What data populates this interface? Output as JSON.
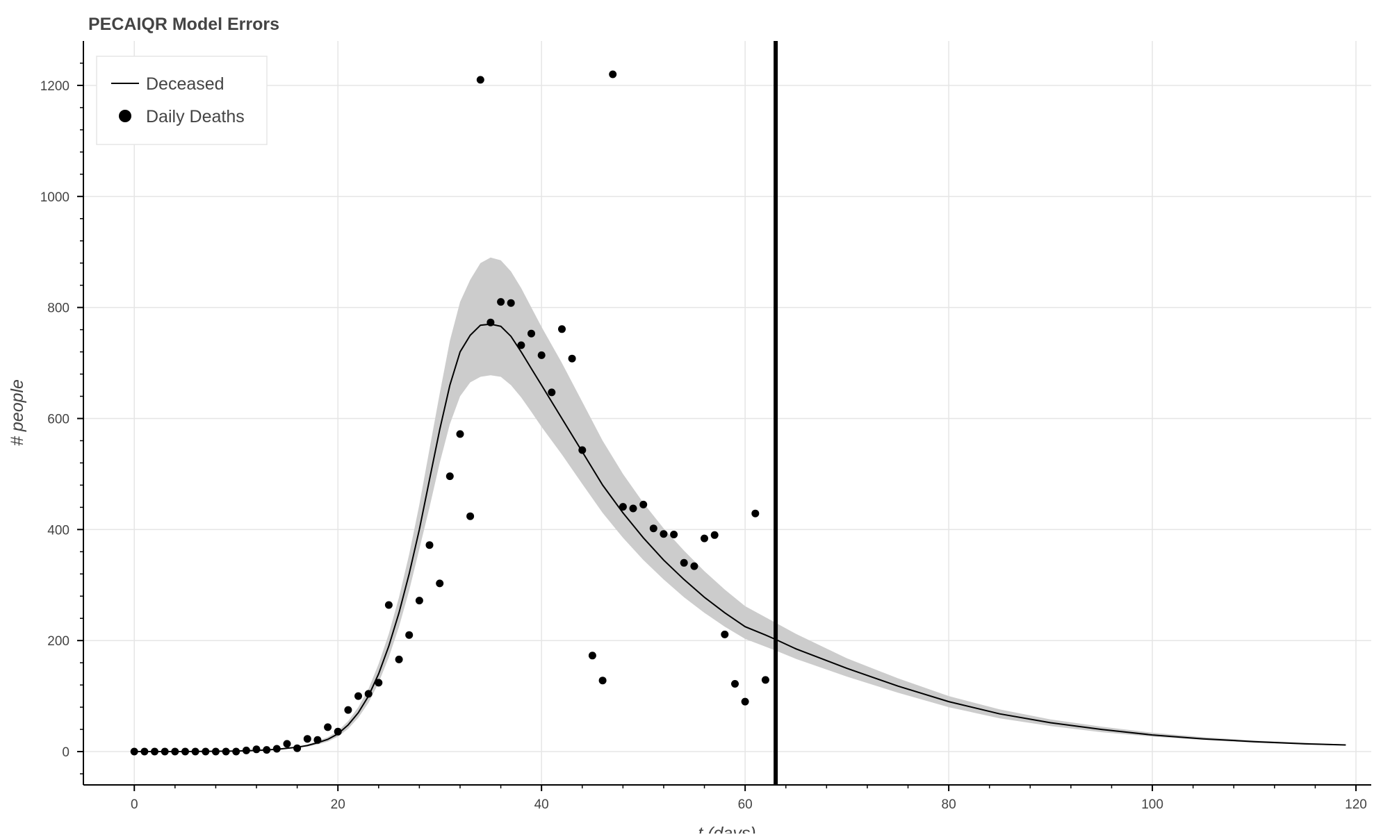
{
  "chart_data": {
    "type": "line",
    "title": "PECAIQR Model Errors",
    "xlabel": "t (days)",
    "ylabel": "# people",
    "xlim": [
      -5,
      121.5
    ],
    "ylim": [
      -60,
      1280
    ],
    "x_ticks": [
      0,
      20,
      40,
      60,
      80,
      100,
      120
    ],
    "y_ticks": [
      0,
      200,
      400,
      600,
      800,
      1000,
      1200
    ],
    "grid": true,
    "legend": {
      "position": "top-left",
      "entries": [
        {
          "label": "Deceased",
          "marker": "line"
        },
        {
          "label": "Daily Deaths",
          "marker": "circle"
        }
      ]
    },
    "vline": {
      "x": 63
    },
    "colors": {
      "line": "#000000",
      "band": "#cccccc",
      "points": "#000000",
      "grid": "#e5e5e5",
      "axis": "#000000"
    },
    "deceased_curve": {
      "x": [
        0,
        5,
        10,
        12,
        14,
        15,
        16,
        17,
        18,
        19,
        20,
        21,
        22,
        23,
        24,
        25,
        26,
        27,
        28,
        29,
        30,
        31,
        32,
        33,
        34,
        35,
        36,
        37,
        38,
        39,
        40,
        42,
        44,
        46,
        48,
        50,
        52,
        54,
        56,
        58,
        60,
        62,
        63,
        65,
        70,
        75,
        80,
        85,
        90,
        95,
        100,
        105,
        110,
        115,
        119
      ],
      "y": [
        0,
        0,
        1,
        2,
        4,
        6,
        8,
        11,
        16,
        22,
        32,
        48,
        70,
        100,
        140,
        190,
        250,
        320,
        400,
        490,
        580,
        660,
        720,
        750,
        768,
        770,
        766,
        748,
        720,
        690,
        660,
        600,
        540,
        480,
        430,
        385,
        345,
        310,
        278,
        250,
        225,
        210,
        202,
        185,
        150,
        118,
        90,
        68,
        52,
        40,
        30,
        23,
        18,
        14,
        12
      ],
      "lower": [
        0,
        0,
        1,
        2,
        3,
        5,
        7,
        9,
        13,
        18,
        27,
        41,
        61,
        88,
        124,
        170,
        225,
        290,
        365,
        440,
        520,
        590,
        640,
        665,
        675,
        678,
        675,
        660,
        638,
        612,
        585,
        535,
        482,
        430,
        385,
        345,
        310,
        278,
        250,
        225,
        203,
        189,
        182,
        167,
        135,
        106,
        80,
        60,
        46,
        35,
        27,
        21,
        16,
        13,
        11
      ],
      "upper": [
        0,
        0,
        1,
        2,
        5,
        7,
        9,
        13,
        19,
        26,
        37,
        55,
        80,
        113,
        158,
        212,
        278,
        355,
        445,
        545,
        645,
        740,
        810,
        850,
        880,
        890,
        885,
        865,
        835,
        800,
        765,
        700,
        630,
        560,
        500,
        448,
        402,
        362,
        325,
        292,
        262,
        242,
        232,
        212,
        168,
        132,
        100,
        76,
        58,
        45,
        34,
        26,
        20,
        16,
        13
      ]
    },
    "daily_deaths": {
      "x": [
        0,
        1,
        2,
        3,
        4,
        5,
        6,
        7,
        8,
        9,
        10,
        11,
        12,
        13,
        14,
        15,
        16,
        17,
        18,
        19,
        20,
        21,
        22,
        23,
        24,
        25,
        26,
        27,
        28,
        29,
        30,
        31,
        32,
        33,
        34,
        35,
        36,
        37,
        38,
        39,
        40,
        41,
        42,
        43,
        44,
        45,
        46,
        47,
        48,
        49,
        50,
        51,
        52,
        53,
        54,
        55,
        56,
        57,
        58,
        59,
        60,
        61,
        62
      ],
      "y": [
        0,
        0,
        0,
        0,
        0,
        0,
        0,
        0,
        0,
        0,
        0,
        2,
        4,
        3,
        5,
        14,
        6,
        23,
        21,
        44,
        36,
        75,
        100,
        104,
        124,
        264,
        166,
        210,
        272,
        372,
        303,
        496,
        572,
        424,
        1210,
        773,
        810,
        808,
        732,
        753,
        714,
        647,
        761,
        708,
        543,
        173,
        128,
        1220,
        441,
        438,
        445,
        402,
        392,
        391,
        340,
        334,
        384,
        390,
        211,
        122,
        90,
        429,
        129
      ]
    }
  }
}
